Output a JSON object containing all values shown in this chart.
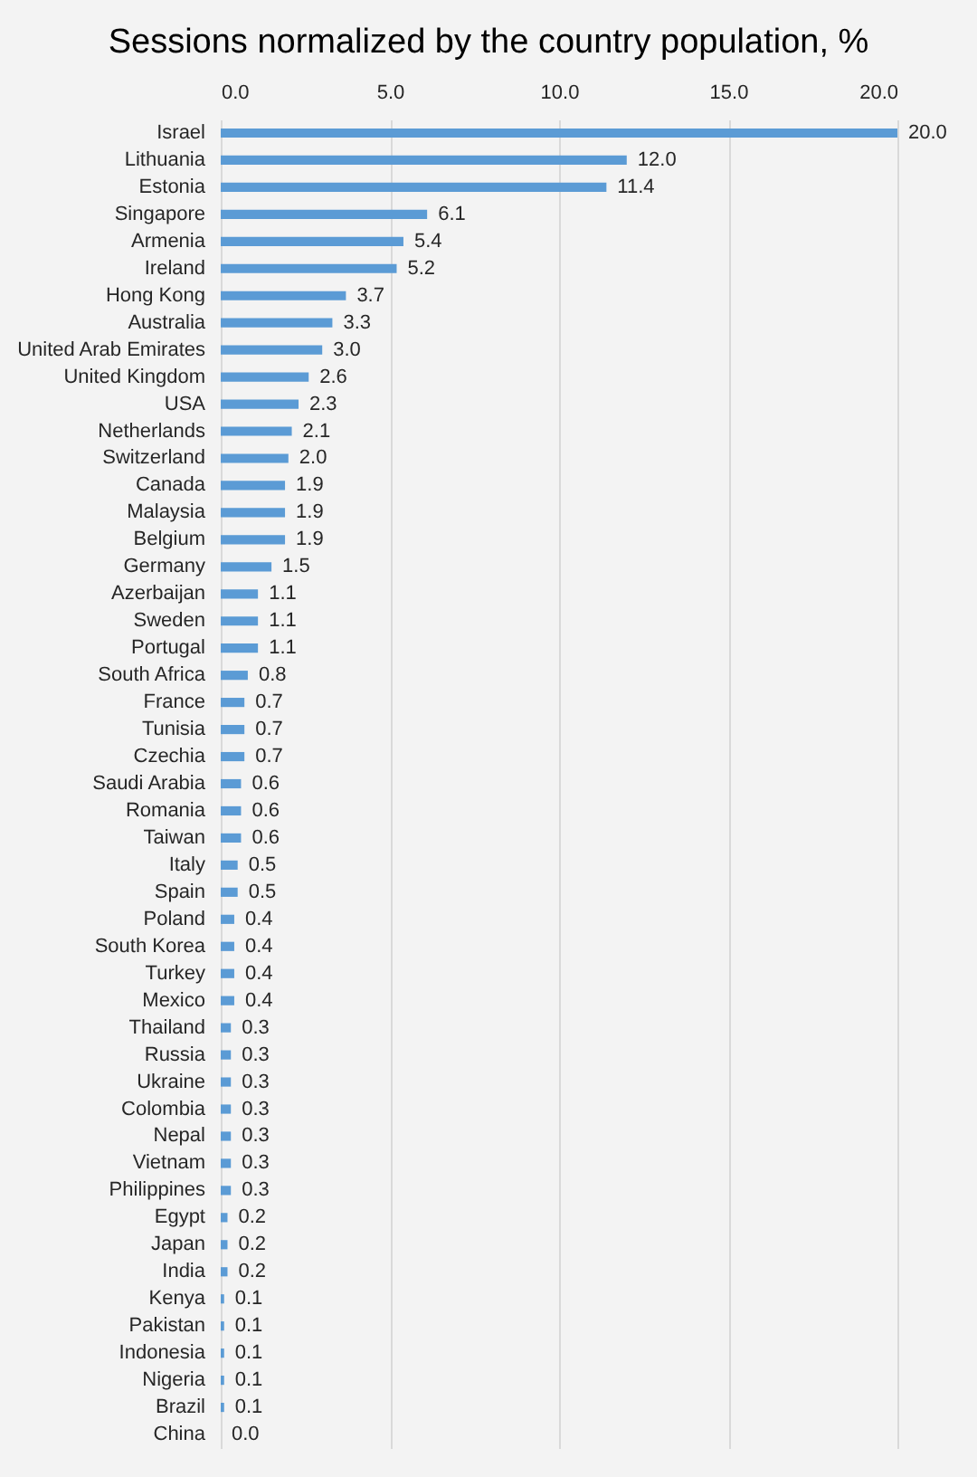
{
  "chart_data": {
    "type": "bar",
    "orientation": "horizontal",
    "title": "Sessions normalized by the country population, %",
    "categories": [
      "Israel",
      "Lithuania",
      "Estonia",
      "Singapore",
      "Armenia",
      "Ireland",
      "Hong Kong",
      "Australia",
      "United Arab Emirates",
      "United Kingdom",
      "USA",
      "Netherlands",
      "Switzerland",
      "Canada",
      "Malaysia",
      "Belgium",
      "Germany",
      "Azerbaijan",
      "Sweden",
      "Portugal",
      "South Africa",
      "France",
      "Tunisia",
      "Czechia",
      "Saudi Arabia",
      "Romania",
      "Taiwan",
      "Italy",
      "Spain",
      "Poland",
      "South Korea",
      "Turkey",
      "Mexico",
      "Thailand",
      "Russia",
      "Ukraine",
      "Colombia",
      "Nepal",
      "Vietnam",
      "Philippines",
      "Egypt",
      "Japan",
      "India",
      "Kenya",
      "Pakistan",
      "Indonesia",
      "Nigeria",
      "Brazil",
      "China"
    ],
    "values": [
      20.0,
      12.0,
      11.4,
      6.1,
      5.4,
      5.2,
      3.7,
      3.3,
      3.0,
      2.6,
      2.3,
      2.1,
      2.0,
      1.9,
      1.9,
      1.9,
      1.5,
      1.1,
      1.1,
      1.1,
      0.8,
      0.7,
      0.7,
      0.7,
      0.6,
      0.6,
      0.6,
      0.5,
      0.5,
      0.4,
      0.4,
      0.4,
      0.4,
      0.3,
      0.3,
      0.3,
      0.3,
      0.3,
      0.3,
      0.3,
      0.2,
      0.2,
      0.2,
      0.1,
      0.1,
      0.1,
      0.1,
      0.1,
      0.0
    ],
    "value_labels": [
      "20.0",
      "12.0",
      "11.4",
      "6.1",
      "5.4",
      "5.2",
      "3.7",
      "3.3",
      "3.0",
      "2.6",
      "2.3",
      "2.1",
      "2.0",
      "1.9",
      "1.9",
      "1.9",
      "1.5",
      "1.1",
      "1.1",
      "1.1",
      "0.8",
      "0.7",
      "0.7",
      "0.7",
      "0.6",
      "0.6",
      "0.6",
      "0.5",
      "0.5",
      "0.4",
      "0.4",
      "0.4",
      "0.4",
      "0.3",
      "0.3",
      "0.3",
      "0.3",
      "0.3",
      "0.3",
      "0.3",
      "0.2",
      "0.2",
      "0.2",
      "0.1",
      "0.1",
      "0.1",
      "0.1",
      "0.1",
      "0.0"
    ],
    "color": "#5b9bd5",
    "xlim": [
      0,
      20
    ],
    "xticks": [
      {
        "value": 0,
        "label": "0.0"
      },
      {
        "value": 5,
        "label": "5.0"
      },
      {
        "value": 10,
        "label": "10.0"
      },
      {
        "value": 15,
        "label": "15.0"
      },
      {
        "value": 20,
        "label": "20.0"
      }
    ],
    "grid": "x"
  }
}
